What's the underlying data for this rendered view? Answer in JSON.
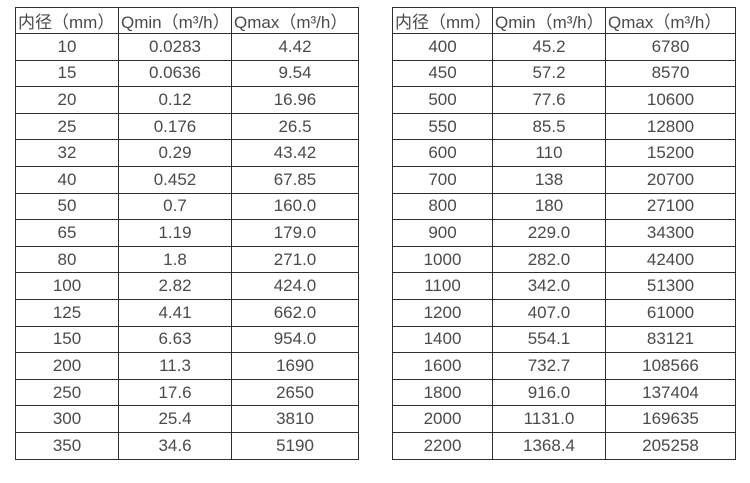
{
  "page": {
    "background": "#ffffff",
    "text_color": "#4a4a4a",
    "border_color": "#2e2e2e"
  },
  "tables": [
    {
      "name": "flow-spec-table-left",
      "headers": [
        "内径（mm）",
        "Qmin（m³/h）",
        "Qmax（m³/h）"
      ],
      "rows": [
        [
          "10",
          "0.0283",
          "4.42"
        ],
        [
          "15",
          "0.0636",
          "9.54"
        ],
        [
          "20",
          "0.12",
          "16.96"
        ],
        [
          "25",
          "0.176",
          "26.5"
        ],
        [
          "32",
          "0.29",
          "43.42"
        ],
        [
          "40",
          "0.452",
          "67.85"
        ],
        [
          "50",
          "0.7",
          "160.0"
        ],
        [
          "65",
          "1.19",
          "179.0"
        ],
        [
          "80",
          "1.8",
          "271.0"
        ],
        [
          "100",
          "2.82",
          "424.0"
        ],
        [
          "125",
          "4.41",
          "662.0"
        ],
        [
          "150",
          "6.63",
          "954.0"
        ],
        [
          "200",
          "11.3",
          "1690"
        ],
        [
          "250",
          "17.6",
          "2650"
        ],
        [
          "300",
          "25.4",
          "3810"
        ],
        [
          "350",
          "34.6",
          "5190"
        ]
      ]
    },
    {
      "name": "flow-spec-table-right",
      "headers": [
        "内径（mm）",
        "Qmin（m³/h）",
        "Qmax（m³/h）"
      ],
      "rows": [
        [
          "400",
          "45.2",
          "6780"
        ],
        [
          "450",
          "57.2",
          "8570"
        ],
        [
          "500",
          "77.6",
          "10600"
        ],
        [
          "550",
          "85.5",
          "12800"
        ],
        [
          "600",
          "110",
          "15200"
        ],
        [
          "700",
          "138",
          "20700"
        ],
        [
          "800",
          "180",
          "27100"
        ],
        [
          "900",
          "229.0",
          "34300"
        ],
        [
          "1000",
          "282.0",
          "42400"
        ],
        [
          "1100",
          "342.0",
          "51300"
        ],
        [
          "1200",
          "407.0",
          "61000"
        ],
        [
          "1400",
          "554.1",
          "83121"
        ],
        [
          "1600",
          "732.7",
          "108566"
        ],
        [
          "1800",
          "916.0",
          "137404"
        ],
        [
          "2000",
          "1131.0",
          "169635"
        ],
        [
          "2200",
          "1368.4",
          "205258"
        ]
      ]
    }
  ]
}
